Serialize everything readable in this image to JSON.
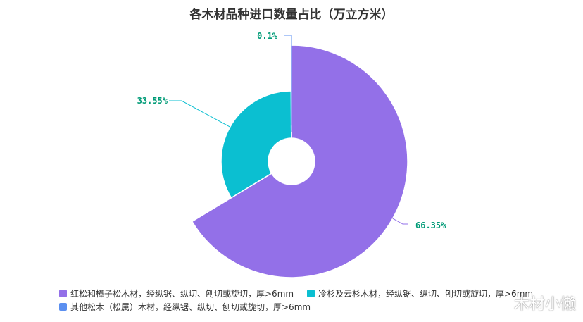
{
  "colors": {
    "series": [
      "#9370e8",
      "#0bbfd1",
      "#5b8ff0"
    ],
    "label_text": "#009b77"
  },
  "chart_data": {
    "type": "pie",
    "variant": "rose",
    "title": "各木材品种进口数量占比（万立方米）",
    "slices": [
      {
        "name": "红松和樟子松木材，经纵锯、纵切、刨切或旋切，厚>6mm",
        "percent": 66.35,
        "label": "66.35%"
      },
      {
        "name": "冷杉及云杉木材，经纵锯、纵切、刨切或旋切，厚>6mm",
        "percent": 33.55,
        "label": "33.55%"
      },
      {
        "name": "其他松木（松属）木材，经纵锯、纵切、刨切或旋切，厚>6mm",
        "percent": 0.1,
        "label": "0.1%"
      }
    ],
    "legend_position": "bottom"
  },
  "watermark": "木材小懒"
}
